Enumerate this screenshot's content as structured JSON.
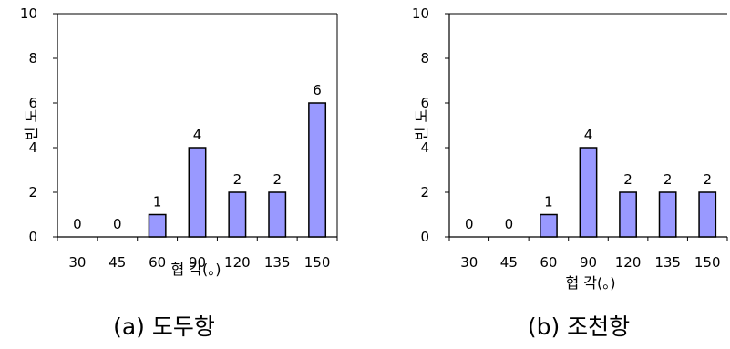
{
  "chart_data": [
    {
      "type": "bar",
      "caption": "(a) 도두항",
      "xlabel": "협 각(。)",
      "ylabel": "빈 도",
      "categories": [
        "30",
        "45",
        "60",
        "90",
        "120",
        "135",
        "150"
      ],
      "values": [
        0,
        0,
        1,
        4,
        2,
        2,
        6
      ],
      "ylim": [
        0,
        10
      ],
      "yticks": [
        "0",
        "2",
        "4",
        "6",
        "8",
        "10"
      ],
      "data_labels": [
        "0",
        "0",
        "1",
        "4",
        "2",
        "2",
        "6"
      ],
      "bar_color": "#9999ff",
      "grid": false
    },
    {
      "type": "bar",
      "caption": "(b) 조천항",
      "xlabel": "협 각(。)",
      "ylabel": "빈 도",
      "categories": [
        "30",
        "45",
        "60",
        "90",
        "120",
        "135",
        "150"
      ],
      "values": [
        0,
        0,
        1,
        4,
        2,
        2,
        2
      ],
      "ylim": [
        0,
        10
      ],
      "yticks": [
        "0",
        "2",
        "4",
        "6",
        "8",
        "10"
      ],
      "data_labels": [
        "0",
        "0",
        "1",
        "4",
        "2",
        "2",
        "2"
      ],
      "bar_color": "#9999ff",
      "grid": false
    }
  ]
}
